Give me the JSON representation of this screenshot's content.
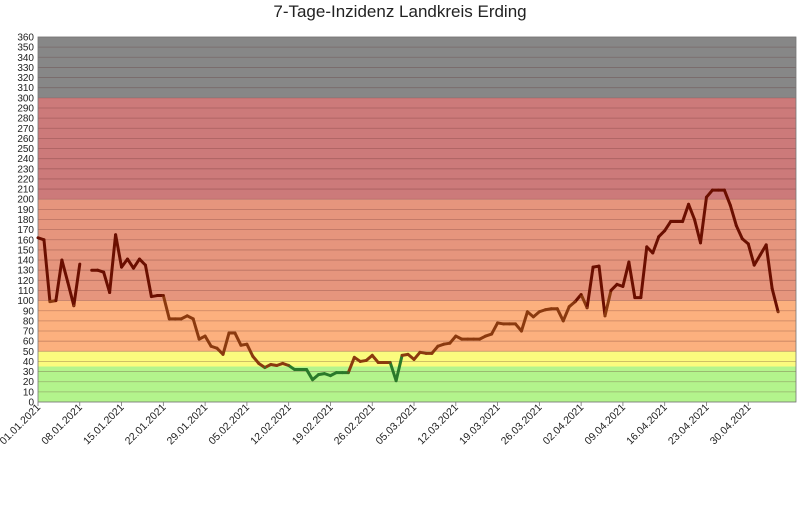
{
  "chart_data": {
    "type": "line",
    "title": "7-Tage-Inzidenz Landkreis Erding",
    "xlabel": "",
    "ylabel": "",
    "ylim": [
      0,
      360
    ],
    "ytick_step": 10,
    "grid": true,
    "x_start": "01.01.2021",
    "x_end": "08.05.2021",
    "x_tick_labels": [
      "01.01.2021",
      "08.01.2021",
      "15.01.2021",
      "22.01.2021",
      "29.01.2021",
      "05.02.2021",
      "12.02.2021",
      "19.02.2021",
      "26.02.2021",
      "05.03.2021",
      "12.03.2021",
      "19.03.2021",
      "26.03.2021",
      "02.04.2021",
      "09.04.2021",
      "16.04.2021",
      "23.04.2021",
      "30.04.2021"
    ],
    "bands": [
      {
        "from": 0,
        "to": 35,
        "color": "#b3f48c"
      },
      {
        "from": 35,
        "to": 50,
        "color": "#fbfb7e"
      },
      {
        "from": 50,
        "to": 100,
        "color": "#fcb07e"
      },
      {
        "from": 100,
        "to": 200,
        "color": "#e6957d"
      },
      {
        "from": 200,
        "to": 300,
        "color": "#cc7a7a"
      },
      {
        "from": 300,
        "to": 360,
        "color": "#878787"
      }
    ],
    "line_colors": {
      "high": "#6b0f00",
      "mid": "#8b3a0f",
      "low": "#2a7a2a"
    },
    "series": [
      {
        "points": [
          [
            "01.01.2021",
            162
          ],
          [
            "02.01.2021",
            160
          ],
          [
            "03.01.2021",
            99
          ],
          [
            "04.01.2021",
            100
          ],
          [
            "05.01.2021",
            140
          ],
          [
            "06.01.2021",
            118
          ],
          [
            "07.01.2021",
            95
          ],
          [
            "08.01.2021",
            136
          ],
          [
            "10.01.2021",
            130
          ],
          [
            "11.01.2021",
            130
          ],
          [
            "12.01.2021",
            128
          ],
          [
            "13.01.2021",
            108
          ],
          [
            "14.01.2021",
            165
          ],
          [
            "15.01.2021",
            133
          ],
          [
            "16.01.2021",
            141
          ],
          [
            "17.01.2021",
            132
          ],
          [
            "18.01.2021",
            141
          ],
          [
            "19.01.2021",
            135
          ],
          [
            "20.01.2021",
            104
          ],
          [
            "21.01.2021",
            105
          ],
          [
            "22.01.2021",
            105
          ],
          [
            "23.01.2021",
            82
          ],
          [
            "24.01.2021",
            82
          ],
          [
            "25.01.2021",
            82
          ],
          [
            "26.01.2021",
            85
          ],
          [
            "27.01.2021",
            82
          ],
          [
            "28.01.2021",
            62
          ],
          [
            "29.01.2021",
            65
          ],
          [
            "30.01.2021",
            55
          ],
          [
            "31.01.2021",
            53
          ],
          [
            "01.02.2021",
            47
          ],
          [
            "02.02.2021",
            68
          ],
          [
            "03.02.2021",
            68
          ],
          [
            "04.02.2021",
            56
          ],
          [
            "05.02.2021",
            57
          ],
          [
            "06.02.2021",
            45
          ],
          [
            "07.02.2021",
            38
          ],
          [
            "08.02.2021",
            34
          ],
          [
            "09.02.2021",
            37
          ],
          [
            "10.02.2021",
            36
          ],
          [
            "11.02.2021",
            38
          ],
          [
            "12.02.2021",
            36
          ],
          [
            "13.02.2021",
            32
          ],
          [
            "14.02.2021",
            32
          ],
          [
            "15.02.2021",
            32
          ],
          [
            "16.02.2021",
            22
          ],
          [
            "17.02.2021",
            27
          ],
          [
            "18.02.2021",
            28
          ],
          [
            "19.02.2021",
            26
          ],
          [
            "20.02.2021",
            29
          ],
          [
            "21.02.2021",
            29
          ],
          [
            "22.02.2021",
            29
          ],
          [
            "23.02.2021",
            44
          ],
          [
            "24.02.2021",
            40
          ],
          [
            "25.02.2021",
            41
          ],
          [
            "26.02.2021",
            46
          ],
          [
            "27.02.2021",
            39
          ],
          [
            "28.02.2021",
            39
          ],
          [
            "01.03.2021",
            39
          ],
          [
            "02.03.2021",
            21
          ],
          [
            "03.03.2021",
            46
          ],
          [
            "04.03.2021",
            47
          ],
          [
            "05.03.2021",
            42
          ],
          [
            "06.03.2021",
            49
          ],
          [
            "07.03.2021",
            48
          ],
          [
            "08.03.2021",
            48
          ],
          [
            "09.03.2021",
            55
          ],
          [
            "10.03.2021",
            57
          ],
          [
            "11.03.2021",
            58
          ],
          [
            "12.03.2021",
            65
          ],
          [
            "13.03.2021",
            62
          ],
          [
            "14.03.2021",
            62
          ],
          [
            "15.03.2021",
            62
          ],
          [
            "16.03.2021",
            62
          ],
          [
            "17.03.2021",
            65
          ],
          [
            "18.03.2021",
            67
          ],
          [
            "19.03.2021",
            78
          ],
          [
            "20.03.2021",
            77
          ],
          [
            "21.03.2021",
            77
          ],
          [
            "22.03.2021",
            77
          ],
          [
            "23.03.2021",
            70
          ],
          [
            "24.03.2021",
            89
          ],
          [
            "25.03.2021",
            84
          ],
          [
            "26.03.2021",
            89
          ],
          [
            "27.03.2021",
            91
          ],
          [
            "28.03.2021",
            92
          ],
          [
            "29.03.2021",
            92
          ],
          [
            "30.03.2021",
            80
          ],
          [
            "31.03.2021",
            94
          ],
          [
            "01.04.2021",
            99
          ],
          [
            "02.04.2021",
            106
          ],
          [
            "03.04.2021",
            93
          ],
          [
            "04.04.2021",
            133
          ],
          [
            "05.04.2021",
            134
          ],
          [
            "06.04.2021",
            85
          ],
          [
            "07.04.2021",
            110
          ],
          [
            "08.04.2021",
            116
          ],
          [
            "09.04.2021",
            114
          ],
          [
            "10.04.2021",
            138
          ],
          [
            "11.04.2021",
            103
          ],
          [
            "12.04.2021",
            103
          ],
          [
            "13.04.2021",
            153
          ],
          [
            "14.04.2021",
            147
          ],
          [
            "15.04.2021",
            163
          ],
          [
            "16.04.2021",
            169
          ],
          [
            "17.04.2021",
            178
          ],
          [
            "18.04.2021",
            178
          ],
          [
            "19.04.2021",
            178
          ],
          [
            "20.04.2021",
            195
          ],
          [
            "21.04.2021",
            180
          ],
          [
            "22.04.2021",
            157
          ],
          [
            "23.04.2021",
            202
          ],
          [
            "24.04.2021",
            209
          ],
          [
            "25.04.2021",
            209
          ],
          [
            "26.04.2021",
            209
          ],
          [
            "27.04.2021",
            194
          ],
          [
            "28.04.2021",
            174
          ],
          [
            "29.04.2021",
            161
          ],
          [
            "30.04.2021",
            156
          ],
          [
            "01.05.2021",
            135
          ],
          [
            "02.05.2021",
            145
          ],
          [
            "03.05.2021",
            155
          ],
          [
            "04.05.2021",
            112
          ],
          [
            "05.05.2021",
            89
          ]
        ]
      }
    ]
  }
}
